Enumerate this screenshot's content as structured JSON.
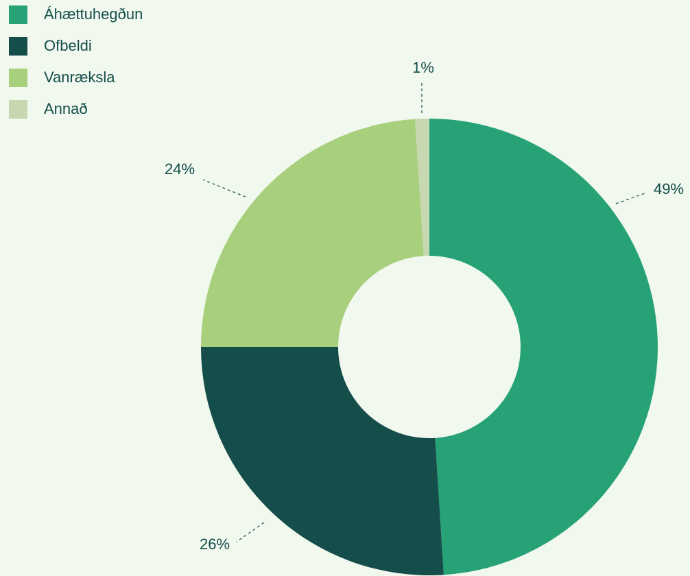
{
  "chart_data": {
    "type": "pie",
    "categories": [
      "Áhættuhegðun",
      "Ofbeldi",
      "Vanræksla",
      "Annað"
    ],
    "values": [
      49,
      26,
      24,
      1
    ],
    "value_labels": [
      "49%",
      "26%",
      "24%",
      "1%"
    ],
    "colors": [
      "#26a276",
      "#154d4b",
      "#a8cf7b",
      "#c7d8b0"
    ],
    "legend": "top-left"
  }
}
